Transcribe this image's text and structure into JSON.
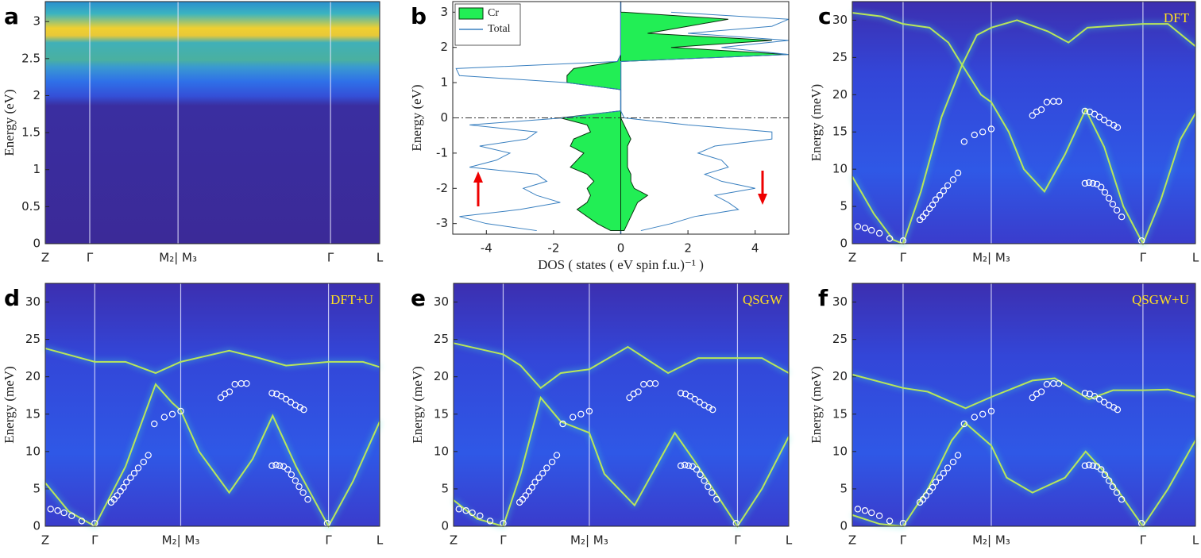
{
  "chart_data": [
    {
      "type": "heatmap",
      "panel": "a",
      "ylabel": "Energy (eV)",
      "xlim": [
        0,
        1
      ],
      "xticks": [
        {
          "value": 0,
          "label": "Z"
        },
        {
          "value": 0.133,
          "label": "Γ"
        },
        {
          "value": 0.397,
          "label": "M₂| M₃"
        },
        {
          "value": 0.853,
          "label": "Γ"
        },
        {
          "value": 1,
          "label": "L"
        }
      ],
      "ylim": [
        0,
        3.27
      ],
      "yticks": [
        0,
        0.5,
        1,
        1.5,
        2,
        2.5,
        3
      ],
      "grid": "x"
    },
    {
      "type": "dos",
      "panel": "b",
      "ylabel": "Energy (eV)",
      "xlabel": "DOS ( states ( eV spin f.u.)⁻¹ )",
      "legend": "upper left",
      "reference_line": 0,
      "xlim": [
        -5,
        5
      ],
      "xticks": [
        -4,
        -2,
        0,
        2,
        4
      ],
      "ylim": [
        -3.3,
        3.3
      ],
      "yticks": [
        -3,
        -2,
        -1,
        0,
        1,
        2,
        3
      ],
      "y": [
        -3.2,
        -3.0,
        -2.8,
        -2.6,
        -2.4,
        -2.2,
        -2.0,
        -1.8,
        -1.6,
        -1.4,
        -1.2,
        -1.0,
        -0.8,
        -0.6,
        -0.4,
        -0.2,
        0,
        0.2,
        0.4,
        0.6,
        0.8,
        1.0,
        1.2,
        1.4,
        1.6,
        1.8,
        2.0,
        2.2,
        2.4,
        2.6,
        2.8,
        3.0
      ],
      "series": [
        {
          "name": "Cr",
          "color": "#22ee55",
          "fill": true,
          "values": [
            -0.3,
            -0.7,
            -1.0,
            -1.3,
            -1.0,
            -0.9,
            -1.0,
            -0.8,
            -1.0,
            -1.5,
            -1.3,
            -1.1,
            -1.5,
            -1.4,
            -0.9,
            -1.0,
            -1.8,
            0,
            0,
            0,
            0,
            -1.6,
            -1.6,
            -1.4,
            -0.1,
            0,
            0,
            0,
            0,
            0,
            0,
            0
          ]
        },
        {
          "color": "#22ee55",
          "fill": true,
          "values": [
            0.1,
            0.2,
            0.3,
            0.4,
            0.5,
            0.8,
            0.4,
            0.3,
            0.3,
            0.2,
            0.2,
            0.2,
            0.2,
            0.3,
            0.2,
            0.1,
            0,
            0,
            0,
            0,
            0,
            0,
            0,
            0,
            0,
            5,
            1.5,
            4.5,
            0.8,
            2,
            3.2,
            0.1
          ]
        },
        {
          "name": "Total",
          "color": "#3a80c0",
          "fill": false,
          "values": [
            -2.5,
            -4,
            -4.8,
            -3,
            -1.8,
            -2.5,
            -2.9,
            -2.2,
            -2.5,
            -4.5,
            -3.7,
            -3.3,
            -4.2,
            -2.8,
            -2.5,
            -4.5,
            -1.7,
            0,
            0,
            0,
            0,
            -1.6,
            -4.8,
            -4.9,
            -0.1,
            0,
            0,
            0,
            0,
            0,
            0,
            0
          ]
        },
        {
          "color": "#3a80c0",
          "fill": false,
          "values": [
            0.6,
            1.5,
            2.2,
            3.5,
            3.2,
            2.8,
            4.0,
            3.0,
            2.5,
            3.2,
            3.0,
            2.3,
            2.8,
            4.5,
            4.5,
            2.0,
            0.1,
            0,
            0,
            0,
            0,
            0,
            0,
            0,
            0,
            5,
            3,
            5,
            2,
            4.5,
            5,
            1.5
          ]
        }
      ]
    },
    {
      "type": "band",
      "panel": "c",
      "annotation": "DFT",
      "ylabel": "Energy (meV)",
      "xlim": [
        0,
        1
      ],
      "xticks": [
        {
          "value": 0,
          "label": "Z"
        },
        {
          "value": 0.148,
          "label": "Γ"
        },
        {
          "value": 0.405,
          "label": "M₂| M₃"
        },
        {
          "value": 0.847,
          "label": "Γ"
        },
        {
          "value": 1,
          "label": "L"
        }
      ],
      "ylim": [
        0,
        32.5
      ],
      "yticks": [
        0,
        5,
        10,
        15,
        20,
        25,
        30
      ],
      "grid": "x",
      "series": [
        {
          "color": "#b8e65a",
          "x": [
            0,
            0.086,
            0.148,
            0.225,
            0.28,
            0.32,
            0.375,
            0.405,
            0.456,
            0.5,
            0.56,
            0.62,
            0.68,
            0.734,
            0.79,
            0.847,
            0.9,
            0.956,
            1
          ],
          "values": [
            31,
            30.5,
            29.5,
            29,
            27,
            24,
            20,
            19,
            15,
            10,
            7,
            12,
            18,
            13,
            5,
            0,
            6,
            14,
            17.5
          ]
        },
        {
          "color": "#b8e65a",
          "x": [
            0,
            0.063,
            0.12,
            0.148,
            0.2,
            0.26,
            0.32,
            0.363,
            0.405,
            0.48,
            0.57,
            0.63,
            0.685,
            0.847,
            0.92,
            1
          ],
          "values": [
            9,
            4,
            0.5,
            0,
            7,
            17,
            24,
            28,
            29,
            30,
            28.5,
            27,
            29,
            29.5,
            29.5,
            26.5
          ]
        }
      ],
      "points": {
        "color": "#ffffff",
        "x": [
          0.016,
          0.037,
          0.056,
          0.079,
          0.109,
          0.148,
          0.197,
          0.206,
          0.215,
          0.225,
          0.234,
          0.243,
          0.255,
          0.266,
          0.278,
          0.294,
          0.308,
          0.326,
          0.356,
          0.38,
          0.405,
          0.525,
          0.537,
          0.551,
          0.567,
          0.586,
          0.602,
          0.678,
          0.692,
          0.706,
          0.72,
          0.734,
          0.748,
          0.762,
          0.773,
          0.678,
          0.69,
          0.701,
          0.713,
          0.725,
          0.736,
          0.748,
          0.759,
          0.771,
          0.785,
          0.843
        ],
        "values": [
          2.3,
          2.1,
          1.8,
          1.4,
          0.7,
          0.4,
          3.2,
          3.6,
          4.1,
          4.7,
          5.2,
          5.9,
          6.5,
          7.1,
          7.8,
          8.6,
          9.5,
          13.7,
          14.6,
          15,
          15.4,
          17.2,
          17.7,
          18,
          19,
          19.1,
          19.1,
          17.8,
          17.7,
          17.4,
          17,
          16.6,
          16.2,
          15.9,
          15.6,
          8.1,
          8.2,
          8.1,
          8,
          7.6,
          6.9,
          6.1,
          5.3,
          4.5,
          3.6,
          0.4
        ]
      }
    },
    {
      "type": "band",
      "panel": "d",
      "annotation": "DFT+U",
      "ylabel": "Energy (meV)",
      "xlim": [
        0,
        1
      ],
      "xticks": [
        {
          "value": 0,
          "label": "Z"
        },
        {
          "value": 0.148,
          "label": "Γ"
        },
        {
          "value": 0.405,
          "label": "M₂| M₃"
        },
        {
          "value": 0.847,
          "label": "Γ"
        },
        {
          "value": 1,
          "label": "L"
        }
      ],
      "ylim": [
        0,
        32.5
      ],
      "yticks": [
        0,
        5,
        10,
        15,
        20,
        25,
        30
      ],
      "grid": "x",
      "series": [
        {
          "color": "#b8e65a",
          "x": [
            0,
            0.148,
            0.24,
            0.33,
            0.405,
            0.55,
            0.64,
            0.72,
            0.847,
            0.95,
            1
          ],
          "values": [
            23.8,
            22,
            22,
            20.5,
            22,
            23.5,
            22.5,
            21.5,
            22,
            22,
            21.3
          ]
        },
        {
          "color": "#b8e65a",
          "x": [
            0,
            0.07,
            0.148,
            0.24,
            0.33,
            0.38,
            0.405,
            0.46,
            0.55,
            0.62,
            0.68,
            0.75,
            0.847,
            0.92,
            1
          ],
          "values": [
            5.8,
            2,
            0,
            8,
            19,
            16.5,
            15.5,
            10,
            4.5,
            9,
            14.8,
            8,
            0,
            6,
            14
          ]
        }
      ],
      "points": {
        "color": "#ffffff",
        "x": [
          0.016,
          0.037,
          0.056,
          0.079,
          0.109,
          0.148,
          0.197,
          0.206,
          0.215,
          0.225,
          0.234,
          0.243,
          0.255,
          0.266,
          0.278,
          0.294,
          0.308,
          0.326,
          0.356,
          0.38,
          0.405,
          0.525,
          0.537,
          0.551,
          0.567,
          0.586,
          0.602,
          0.678,
          0.692,
          0.706,
          0.72,
          0.734,
          0.748,
          0.762,
          0.773,
          0.678,
          0.69,
          0.701,
          0.713,
          0.725,
          0.736,
          0.748,
          0.759,
          0.771,
          0.785,
          0.843
        ],
        "values": [
          2.3,
          2.1,
          1.8,
          1.4,
          0.7,
          0.4,
          3.2,
          3.6,
          4.1,
          4.7,
          5.2,
          5.9,
          6.5,
          7.1,
          7.8,
          8.6,
          9.5,
          13.7,
          14.6,
          15,
          15.4,
          17.2,
          17.7,
          18,
          19,
          19.1,
          19.1,
          17.8,
          17.7,
          17.4,
          17,
          16.6,
          16.2,
          15.9,
          15.6,
          8.1,
          8.2,
          8.1,
          8,
          7.6,
          6.9,
          6.1,
          5.3,
          4.5,
          3.6,
          0.4
        ]
      }
    },
    {
      "type": "band",
      "panel": "e",
      "annotation": "QSGW",
      "ylabel": "Energy (meV)",
      "xlim": [
        0,
        1
      ],
      "xticks": [
        {
          "value": 0,
          "label": "Z"
        },
        {
          "value": 0.148,
          "label": "Γ"
        },
        {
          "value": 0.405,
          "label": "M₂| M₃"
        },
        {
          "value": 0.847,
          "label": "Γ"
        },
        {
          "value": 1,
          "label": "L"
        }
      ],
      "ylim": [
        0,
        32.5
      ],
      "yticks": [
        0,
        5,
        10,
        15,
        20,
        25,
        30
      ],
      "grid": "x",
      "series": [
        {
          "color": "#b8e65a",
          "x": [
            0,
            0.148,
            0.2,
            0.26,
            0.32,
            0.405,
            0.52,
            0.64,
            0.73,
            0.847,
            0.92,
            1
          ],
          "values": [
            24.5,
            23,
            21.5,
            18.5,
            20.5,
            21,
            24,
            20.5,
            22.5,
            22.5,
            22.5,
            20.5
          ]
        },
        {
          "color": "#b8e65a",
          "x": [
            0,
            0.07,
            0.148,
            0.2,
            0.26,
            0.32,
            0.405,
            0.45,
            0.54,
            0.66,
            0.73,
            0.847,
            0.92,
            1
          ],
          "values": [
            3.5,
            1,
            0,
            7,
            17.2,
            14,
            12.5,
            7,
            2.8,
            12.5,
            8,
            0,
            5,
            12
          ]
        }
      ],
      "points": {
        "color": "#ffffff",
        "x": [
          0.016,
          0.037,
          0.056,
          0.079,
          0.109,
          0.148,
          0.197,
          0.206,
          0.215,
          0.225,
          0.234,
          0.243,
          0.255,
          0.266,
          0.278,
          0.294,
          0.308,
          0.326,
          0.356,
          0.38,
          0.405,
          0.525,
          0.537,
          0.551,
          0.567,
          0.586,
          0.602,
          0.678,
          0.692,
          0.706,
          0.72,
          0.734,
          0.748,
          0.762,
          0.773,
          0.678,
          0.69,
          0.701,
          0.713,
          0.725,
          0.736,
          0.748,
          0.759,
          0.771,
          0.785,
          0.843
        ],
        "values": [
          2.3,
          2.1,
          1.8,
          1.4,
          0.7,
          0.4,
          3.2,
          3.6,
          4.1,
          4.7,
          5.2,
          5.9,
          6.5,
          7.1,
          7.8,
          8.6,
          9.5,
          13.7,
          14.6,
          15,
          15.4,
          17.2,
          17.7,
          18,
          19,
          19.1,
          19.1,
          17.8,
          17.7,
          17.4,
          17,
          16.6,
          16.2,
          15.9,
          15.6,
          8.1,
          8.2,
          8.1,
          8,
          7.6,
          6.9,
          6.1,
          5.3,
          4.5,
          3.6,
          0.4
        ]
      }
    },
    {
      "type": "band",
      "panel": "f",
      "annotation": "QSGW+U",
      "ylabel": "Energy (meV)",
      "xlim": [
        0,
        1
      ],
      "xticks": [
        {
          "value": 0,
          "label": "Z"
        },
        {
          "value": 0.148,
          "label": "Γ"
        },
        {
          "value": 0.405,
          "label": "M₂| M₃"
        },
        {
          "value": 0.847,
          "label": "Γ"
        },
        {
          "value": 1,
          "label": "L"
        }
      ],
      "ylim": [
        0,
        32.5
      ],
      "yticks": [
        0,
        5,
        10,
        15,
        20,
        25,
        30
      ],
      "grid": "x",
      "series": [
        {
          "color": "#b8e65a",
          "x": [
            0,
            0.148,
            0.22,
            0.33,
            0.405,
            0.525,
            0.59,
            0.69,
            0.76,
            0.847,
            0.92,
            1
          ],
          "values": [
            20.3,
            18.5,
            18,
            15.8,
            17.3,
            19.5,
            19.8,
            17,
            18.2,
            18.2,
            18.3,
            17.3
          ]
        },
        {
          "color": "#b8e65a",
          "x": [
            0,
            0.08,
            0.148,
            0.22,
            0.29,
            0.33,
            0.405,
            0.45,
            0.525,
            0.62,
            0.68,
            0.74,
            0.847,
            0.92,
            1
          ],
          "values": [
            1.5,
            0.3,
            0,
            5,
            11.5,
            13.8,
            10.8,
            6.5,
            4.5,
            6.5,
            10,
            7,
            0,
            5,
            11.5
          ]
        }
      ],
      "points": {
        "color": "#ffffff",
        "x": [
          0.016,
          0.037,
          0.056,
          0.079,
          0.109,
          0.148,
          0.197,
          0.206,
          0.215,
          0.225,
          0.234,
          0.243,
          0.255,
          0.266,
          0.278,
          0.294,
          0.308,
          0.326,
          0.356,
          0.38,
          0.405,
          0.525,
          0.537,
          0.551,
          0.567,
          0.586,
          0.602,
          0.678,
          0.692,
          0.706,
          0.72,
          0.734,
          0.748,
          0.762,
          0.773,
          0.678,
          0.69,
          0.701,
          0.713,
          0.725,
          0.736,
          0.748,
          0.759,
          0.771,
          0.785,
          0.843
        ],
        "values": [
          2.3,
          2.1,
          1.8,
          1.4,
          0.7,
          0.4,
          3.2,
          3.6,
          4.1,
          4.7,
          5.2,
          5.9,
          6.5,
          7.1,
          7.8,
          8.6,
          9.5,
          13.7,
          14.6,
          15,
          15.4,
          17.2,
          17.7,
          18,
          19,
          19.1,
          19.1,
          17.8,
          17.7,
          17.4,
          17,
          16.6,
          16.2,
          15.9,
          15.6,
          8.1,
          8.2,
          8.1,
          8,
          7.6,
          6.9,
          6.1,
          5.3,
          4.5,
          3.6,
          0.4
        ]
      }
    }
  ]
}
